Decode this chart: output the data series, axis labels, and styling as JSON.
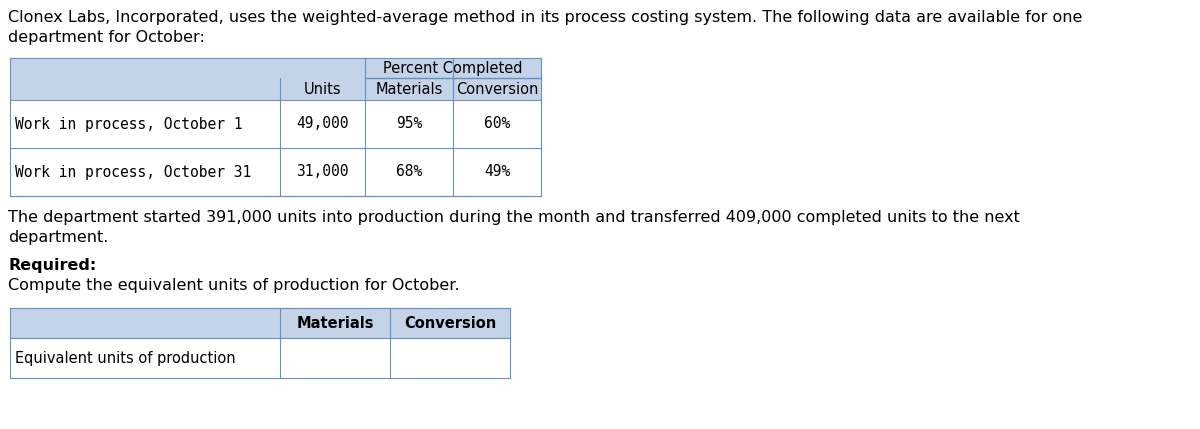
{
  "intro_line1": "Clonex Labs, Incorporated, uses the weighted-average method in its process costing system. The following data are available for one",
  "intro_line2": "department for October:",
  "para_line1": "The department started 391,000 units into production during the month and transferred 409,000 completed units to the next",
  "para_line2": "department.",
  "required_bold": "Required:",
  "required_text": "Compute the equivalent units of production for October.",
  "t1_rows": [
    [
      "Work in process, October 1",
      "49,000",
      "95%",
      "60%"
    ],
    [
      "Work in process, October 31",
      "31,000",
      "68%",
      "49%"
    ]
  ],
  "t2_row": [
    "Equivalent units of production",
    "",
    ""
  ],
  "hdr_bg": "#c5d3e8",
  "row_bg": "#ffffff",
  "border": "#6690c0",
  "body_fs": 11.5,
  "tbl_fs": 10.5,
  "bg": "#ffffff"
}
